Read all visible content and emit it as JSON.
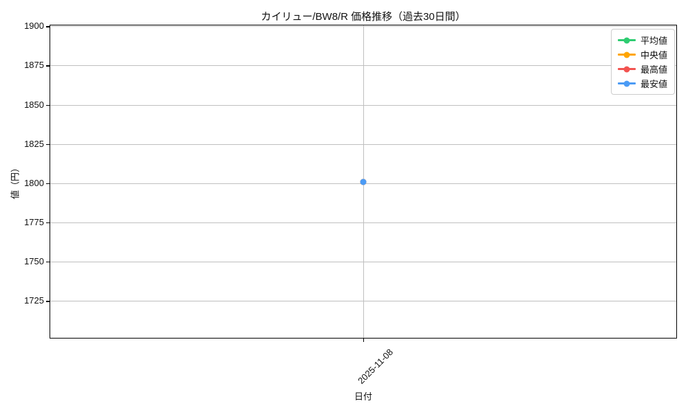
{
  "figure": {
    "title": "カイリュー/BW8/R 価格推移（過去30日間）",
    "xlabel": "日付",
    "ylabel": "値（円）"
  },
  "chart_data": {
    "type": "line",
    "title": "カイリュー/BW8/R 価格推移（過去30日間）",
    "xlabel": "日付",
    "ylabel": "値（円）",
    "x": [
      "2025-11-08"
    ],
    "series": [
      {
        "name": "平均値",
        "color": "#2ecc71",
        "values": [
          1801
        ]
      },
      {
        "name": "中央値",
        "color": "#ffa502",
        "values": [
          1801
        ]
      },
      {
        "name": "最高値",
        "color": "#f25350",
        "values": [
          1801
        ]
      },
      {
        "name": "最安値",
        "color": "#4b9bf5",
        "values": [
          1801
        ]
      }
    ],
    "ylim": [
      1701,
      1901
    ],
    "yticks": [
      1725,
      1750,
      1775,
      1800,
      1825,
      1850,
      1875,
      1900
    ],
    "grid": true,
    "legend_position": "upper right"
  },
  "colors": {
    "background": "#ffffff",
    "grid": "#bfbfbf",
    "spine": "#000000",
    "legend_border": "#cccccc"
  }
}
